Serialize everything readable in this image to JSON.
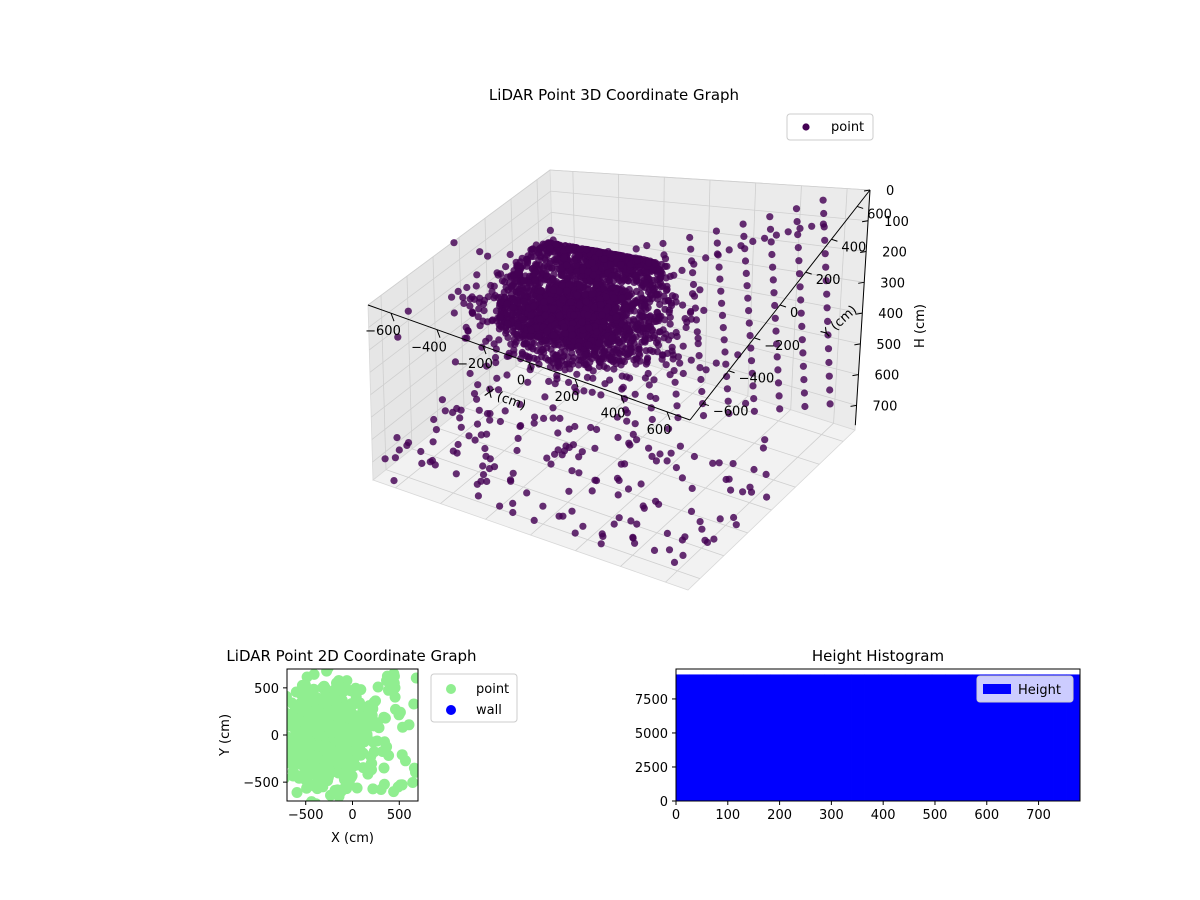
{
  "chart_data": [
    {
      "type": "scatter",
      "projection": "3d",
      "title": "LiDAR Point 3D Coordinate Graph",
      "xlabel": "X (cm)",
      "ylabel": "Y (cm)",
      "zlabel": "H (cm)",
      "xticks": [
        -600,
        -400,
        -200,
        0,
        200,
        400,
        600
      ],
      "yticks": [
        -600,
        -400,
        -200,
        0,
        200,
        400,
        600
      ],
      "zticks": [
        0,
        100,
        200,
        300,
        400,
        500,
        600,
        700
      ],
      "xlim": [
        -700,
        700
      ],
      "ylim": [
        -700,
        700
      ],
      "zlim": [
        0,
        780
      ],
      "z_inverted": true,
      "grid": true,
      "legend": {
        "position": "top-right",
        "entries": [
          "point"
        ]
      },
      "series": [
        {
          "name": "point",
          "color": "#440154",
          "points_sample": [
            [
              -120,
              80,
              250
            ],
            [
              -80,
              120,
              270
            ],
            [
              -40,
              150,
              290
            ],
            [
              0,
              170,
              300
            ],
            [
              40,
              160,
              310
            ],
            [
              80,
              140,
              320
            ],
            [
              120,
              100,
              330
            ],
            [
              160,
              60,
              340
            ],
            [
              200,
              20,
              350
            ],
            [
              240,
              -20,
              360
            ],
            [
              -160,
              40,
              240
            ],
            [
              -200,
              0,
              230
            ],
            [
              -240,
              -40,
              220
            ],
            [
              -280,
              -80,
              210
            ],
            [
              -320,
              -120,
              200
            ],
            [
              60,
              200,
              150
            ],
            [
              100,
              220,
              120
            ],
            [
              140,
              240,
              100
            ],
            [
              180,
              260,
              80
            ],
            [
              220,
              280,
              60
            ],
            [
              260,
              300,
              50
            ],
            [
              300,
              320,
              40
            ],
            [
              340,
              340,
              30
            ],
            [
              380,
              360,
              20
            ],
            [
              420,
              380,
              15
            ],
            [
              460,
              400,
              10
            ],
            [
              500,
              420,
              5
            ],
            [
              540,
              440,
              0
            ],
            [
              580,
              460,
              0
            ],
            [
              620,
              480,
              0
            ],
            [
              -500,
              -300,
              700
            ],
            [
              -450,
              -250,
              700
            ],
            [
              -400,
              -350,
              700
            ],
            [
              -300,
              -450,
              700
            ],
            [
              -200,
              -500,
              700
            ],
            [
              -100,
              -550,
              700
            ],
            [
              0,
              -600,
              700
            ],
            [
              100,
              -620,
              700
            ],
            [
              200,
              -640,
              700
            ],
            [
              300,
              -660,
              700
            ],
            [
              400,
              -600,
              700
            ],
            [
              500,
              -500,
              700
            ],
            [
              600,
              -400,
              700
            ],
            [
              -600,
              -200,
              700
            ],
            [
              -650,
              0,
              700
            ],
            [
              -620,
              200,
              700
            ],
            [
              -580,
              400,
              700
            ],
            [
              -500,
              550,
              700
            ],
            [
              300,
              500,
              700
            ],
            [
              500,
              300,
              700
            ]
          ]
        }
      ]
    },
    {
      "type": "scatter",
      "title": "LiDAR Point 2D Coordinate Graph",
      "xlabel": "X (cm)",
      "ylabel": "Y (cm)",
      "xticks": [
        -500,
        0,
        500
      ],
      "yticks": [
        -500,
        0,
        500
      ],
      "xlim": [
        -700,
        700
      ],
      "ylim": [
        -700,
        700
      ],
      "legend": {
        "position": "outside-right",
        "entries": [
          "point",
          "wall"
        ]
      },
      "series": [
        {
          "name": "point",
          "color": "#90ee90",
          "x_range": [
            -700,
            500
          ],
          "y_range": [
            -700,
            700
          ],
          "density_center": [
            -300,
            0
          ]
        },
        {
          "name": "wall",
          "color": "#0000ff",
          "points": []
        }
      ]
    },
    {
      "type": "bar",
      "title": "Height Histogram",
      "xticks": [
        0,
        100,
        200,
        300,
        400,
        500,
        600,
        700
      ],
      "yticks": [
        0,
        2500,
        5000,
        7500
      ],
      "xlim": [
        0,
        780
      ],
      "ylim": [
        0,
        9700
      ],
      "legend": {
        "position": "top-right",
        "entries": [
          "Height"
        ]
      },
      "series": [
        {
          "name": "Height",
          "color": "#0000ff",
          "bin_range": [
            0,
            780
          ],
          "bin_count": 30,
          "value": 9300
        }
      ]
    }
  ]
}
